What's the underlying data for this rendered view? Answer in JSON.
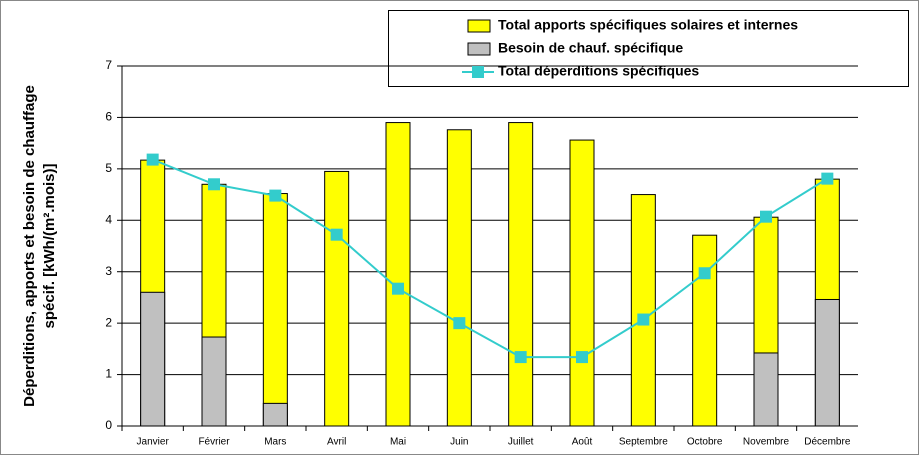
{
  "chart_data": {
    "type": "bar",
    "y_label": [
      "Déperditions, apports et besoin de chauffage",
      "spécif. [kWh/(m².mois)]"
    ],
    "categories": [
      "Janvier",
      "Février",
      "Mars",
      "Avril",
      "Mai",
      "Juin",
      "Juillet",
      "Août",
      "Septembre",
      "Octobre",
      "Novembre",
      "Décembre"
    ],
    "series": [
      {
        "name": "Total apports spécifiques solaires et internes",
        "type": "bar",
        "color": "#ffff00",
        "values": [
          5.17,
          4.7,
          4.52,
          4.95,
          5.9,
          5.76,
          5.9,
          5.56,
          4.5,
          3.71,
          4.06,
          4.8
        ]
      },
      {
        "name": "Besoin de chauf. spécifique",
        "type": "bar",
        "color": "#c0c0c0",
        "values": [
          2.6,
          1.73,
          0.44,
          0,
          0,
          0,
          0,
          0,
          0,
          0,
          1.42,
          2.46
        ]
      },
      {
        "name": "Total déperditions spécifiques",
        "type": "line",
        "color": "#33cccc",
        "values": [
          5.18,
          4.7,
          4.48,
          3.72,
          2.67,
          2.0,
          1.34,
          1.34,
          2.07,
          2.97,
          4.07,
          4.81
        ]
      }
    ],
    "ylim": [
      0,
      7
    ],
    "yticks": [
      0,
      1,
      2,
      3,
      4,
      5,
      6,
      7
    ],
    "grid": true
  }
}
